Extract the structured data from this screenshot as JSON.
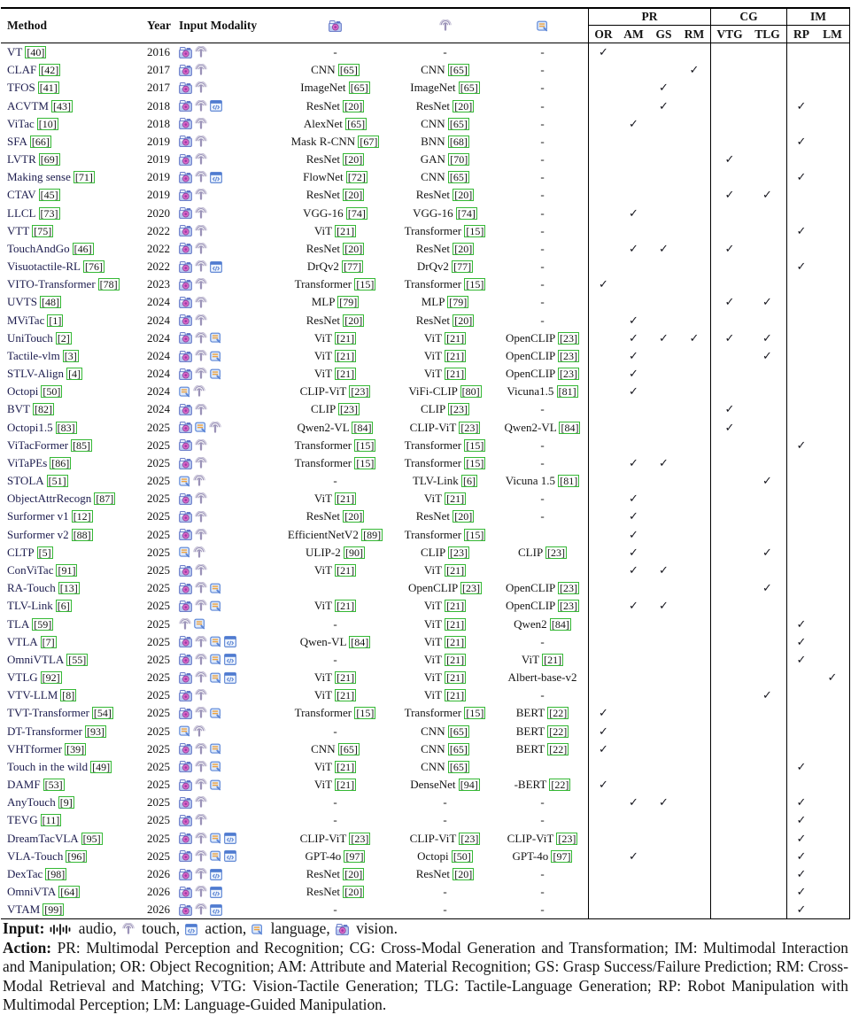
{
  "table": {
    "headers": {
      "method": "Method",
      "year": "Year",
      "input_modality": "Input Modality",
      "encoder_icons": [
        "vision-icon",
        "touch-icon",
        "language-icon"
      ],
      "groups": [
        {
          "label": "PR",
          "cols": [
            "OR",
            "AM",
            "GS",
            "RM"
          ]
        },
        {
          "label": "CG",
          "cols": [
            "VTG",
            "TLG"
          ]
        },
        {
          "label": "IM",
          "cols": [
            "RP",
            "LM"
          ]
        }
      ]
    },
    "check_columns": [
      "OR",
      "AM",
      "GS",
      "RM",
      "VTG",
      "TLG",
      "RP",
      "LM"
    ],
    "rows": [
      {
        "method": "VT",
        "cite": "40",
        "year": "2016",
        "inputs": [
          "vision",
          "touch"
        ],
        "vision_enc": "-",
        "touch_enc": "-",
        "lang_enc": "-",
        "checks": [
          "OR"
        ]
      },
      {
        "method": "CLAF",
        "cite": "42",
        "year": "2017",
        "inputs": [
          "vision",
          "touch"
        ],
        "vision_enc": "CNN [65]",
        "touch_enc": "CNN [65]",
        "lang_enc": "-",
        "checks": [
          "RM"
        ]
      },
      {
        "method": "TFOS",
        "cite": "41",
        "year": "2017",
        "inputs": [
          "vision",
          "touch"
        ],
        "vision_enc": "ImageNet [65]",
        "touch_enc": "ImageNet [65]",
        "lang_enc": "-",
        "checks": [
          "GS"
        ]
      },
      {
        "method": "ACVTM",
        "cite": "43",
        "year": "2018",
        "inputs": [
          "vision",
          "touch",
          "action"
        ],
        "vision_enc": "ResNet [20]",
        "touch_enc": "ResNet [20]",
        "lang_enc": "-",
        "checks": [
          "GS",
          "RP"
        ]
      },
      {
        "method": "ViTac",
        "cite": "10",
        "year": "2018",
        "inputs": [
          "vision",
          "touch"
        ],
        "vision_enc": "AlexNet [65]",
        "touch_enc": "CNN [65]",
        "lang_enc": "-",
        "checks": [
          "AM"
        ]
      },
      {
        "method": "SFA",
        "cite": "66",
        "year": "2019",
        "inputs": [
          "vision",
          "touch"
        ],
        "vision_enc": "Mask R-CNN [67]",
        "touch_enc": "BNN [68]",
        "lang_enc": "-",
        "checks": [
          "RP"
        ]
      },
      {
        "method": "LVTR",
        "cite": "69",
        "year": "2019",
        "inputs": [
          "vision",
          "touch"
        ],
        "vision_enc": "ResNet [20]",
        "touch_enc": "GAN [70]",
        "lang_enc": "-",
        "checks": [
          "VTG"
        ]
      },
      {
        "method": "Making sense",
        "cite": "71",
        "year": "2019",
        "inputs": [
          "vision",
          "touch",
          "action"
        ],
        "vision_enc": "FlowNet [72]",
        "touch_enc": "CNN [65]",
        "lang_enc": "-",
        "checks": [
          "RP"
        ]
      },
      {
        "method": "CTAV",
        "cite": "45",
        "year": "2019",
        "inputs": [
          "vision",
          "touch"
        ],
        "vision_enc": "ResNet [20]",
        "touch_enc": "ResNet [20]",
        "lang_enc": "-",
        "checks": [
          "VTG",
          "TLG"
        ]
      },
      {
        "method": "LLCL",
        "cite": "73",
        "year": "2020",
        "inputs": [
          "vision",
          "touch"
        ],
        "vision_enc": "VGG-16 [74]",
        "touch_enc": "VGG-16 [74]",
        "lang_enc": "-",
        "checks": [
          "AM"
        ]
      },
      {
        "method": "VTT",
        "cite": "75",
        "year": "2022",
        "inputs": [
          "vision",
          "touch"
        ],
        "vision_enc": "ViT [21]",
        "touch_enc": "Transformer [15]",
        "lang_enc": "-",
        "checks": [
          "RP"
        ]
      },
      {
        "method": "TouchAndGo",
        "cite": "46",
        "year": "2022",
        "inputs": [
          "vision",
          "touch"
        ],
        "vision_enc": "ResNet [20]",
        "touch_enc": "ResNet [20]",
        "lang_enc": "-",
        "checks": [
          "AM",
          "GS",
          "VTG"
        ]
      },
      {
        "method": "Visuotactile-RL",
        "cite": "76",
        "year": "2022",
        "inputs": [
          "vision",
          "touch",
          "action"
        ],
        "vision_enc": "DrQv2 [77]",
        "touch_enc": "DrQv2 [77]",
        "lang_enc": "-",
        "checks": [
          "RP"
        ]
      },
      {
        "method": "VITO-Transformer",
        "cite": "78",
        "year": "2023",
        "inputs": [
          "vision",
          "touch"
        ],
        "vision_enc": "Transformer [15]",
        "touch_enc": "Transformer [15]",
        "lang_enc": "-",
        "checks": [
          "OR"
        ]
      },
      {
        "method": "UVTS",
        "cite": "48",
        "year": "2024",
        "inputs": [
          "vision",
          "touch"
        ],
        "vision_enc": "MLP [79]",
        "touch_enc": "MLP [79]",
        "lang_enc": "-",
        "checks": [
          "VTG",
          "TLG"
        ]
      },
      {
        "method": "MViTac",
        "cite": "1",
        "year": "2024",
        "inputs": [
          "vision",
          "touch"
        ],
        "vision_enc": "ResNet [20]",
        "touch_enc": "ResNet [20]",
        "lang_enc": "-",
        "checks": [
          "AM"
        ]
      },
      {
        "method": "UniTouch",
        "cite": "2",
        "year": "2024",
        "inputs": [
          "vision",
          "touch",
          "language"
        ],
        "vision_enc": "ViT [21]",
        "touch_enc": "ViT [21]",
        "lang_enc": "OpenCLIP [23]",
        "checks": [
          "AM",
          "GS",
          "RM",
          "VTG",
          "TLG"
        ]
      },
      {
        "method": "Tactile-vlm",
        "cite": "3",
        "year": "2024",
        "inputs": [
          "vision",
          "touch",
          "language"
        ],
        "vision_enc": "ViT [21]",
        "touch_enc": "ViT [21]",
        "lang_enc": "OpenCLIP [23]",
        "checks": [
          "AM",
          "TLG"
        ]
      },
      {
        "method": "STLV-Align",
        "cite": "4",
        "year": "2024",
        "inputs": [
          "vision",
          "touch",
          "language"
        ],
        "vision_enc": "ViT [21]",
        "touch_enc": "ViT [21]",
        "lang_enc": "OpenCLIP [23]",
        "checks": [
          "AM"
        ]
      },
      {
        "method": "Octopi",
        "cite": "50",
        "year": "2024",
        "inputs": [
          "language",
          "touch"
        ],
        "vision_enc": "CLIP-ViT [23]",
        "touch_enc": "ViFi-CLIP [80]",
        "lang_enc": "Vicuna1.5 [81]",
        "checks": [
          "AM"
        ]
      },
      {
        "method": "BVT",
        "cite": "82",
        "year": "2024",
        "inputs": [
          "vision",
          "touch"
        ],
        "vision_enc": "CLIP [23]",
        "touch_enc": "CLIP [23]",
        "lang_enc": "-",
        "checks": [
          "VTG"
        ]
      },
      {
        "method": "Octopi1.5",
        "cite": "83",
        "year": "2025",
        "inputs": [
          "vision",
          "language",
          "touch"
        ],
        "vision_enc": "Qwen2-VL [84]",
        "touch_enc": "CLIP-ViT [23]",
        "lang_enc": "Qwen2-VL [84]",
        "checks": [
          "VTG"
        ]
      },
      {
        "method": "ViTacFormer",
        "cite": "85",
        "year": "2025",
        "inputs": [
          "vision",
          "touch"
        ],
        "vision_enc": "Transformer [15]",
        "touch_enc": "Transformer [15]",
        "lang_enc": "-",
        "checks": [
          "RP"
        ]
      },
      {
        "method": "ViTaPEs",
        "cite": "86",
        "year": "2025",
        "inputs": [
          "vision",
          "touch"
        ],
        "vision_enc": "Transformer [15]",
        "touch_enc": "Transformer [15]",
        "lang_enc": "-",
        "checks": [
          "AM",
          "GS"
        ]
      },
      {
        "method": "STOLA",
        "cite": "51",
        "year": "2025",
        "inputs": [
          "language",
          "touch"
        ],
        "vision_enc": "-",
        "touch_enc": "TLV-Link [6]",
        "lang_enc": "Vicuna 1.5 [81]",
        "checks": [
          "TLG"
        ]
      },
      {
        "method": "ObjectAttrRecogn",
        "cite": "87",
        "year": "2025",
        "inputs": [
          "vision",
          "touch"
        ],
        "vision_enc": "ViT [21]",
        "touch_enc": "ViT [21]",
        "lang_enc": "-",
        "checks": [
          "AM"
        ]
      },
      {
        "method": "Surformer v1",
        "cite": "12",
        "year": "2025",
        "inputs": [
          "vision",
          "touch"
        ],
        "vision_enc": "ResNet [20]",
        "touch_enc": "ResNet [20]",
        "lang_enc": "-",
        "checks": [
          "AM"
        ]
      },
      {
        "method": "Surformer v2",
        "cite": "88",
        "year": "2025",
        "inputs": [
          "vision",
          "touch"
        ],
        "vision_enc": "EfficientNetV2 [89]",
        "touch_enc": "Transformer [15]",
        "lang_enc": "",
        "checks": [
          "AM"
        ]
      },
      {
        "method": "CLTP",
        "cite": "5",
        "year": "2025",
        "inputs": [
          "language",
          "touch"
        ],
        "vision_enc": "ULIP-2 [90]",
        "touch_enc": "CLIP [23]",
        "lang_enc": "CLIP [23]",
        "checks": [
          "AM",
          "TLG"
        ]
      },
      {
        "method": "ConViTac",
        "cite": "91",
        "year": "2025",
        "inputs": [
          "vision",
          "touch"
        ],
        "vision_enc": "ViT [21]",
        "touch_enc": "ViT [21]",
        "lang_enc": "",
        "checks": [
          "AM",
          "GS"
        ]
      },
      {
        "method": "RA-Touch",
        "cite": "13",
        "year": "2025",
        "inputs": [
          "vision",
          "touch",
          "language"
        ],
        "vision_enc": "",
        "touch_enc": "OpenCLIP [23]",
        "lang_enc": "OpenCLIP [23]",
        "checks": [
          "TLG"
        ]
      },
      {
        "method": "TLV-Link",
        "cite": "6",
        "year": "2025",
        "inputs": [
          "vision",
          "touch",
          "language"
        ],
        "vision_enc": "ViT [21]",
        "touch_enc": "ViT [21]",
        "lang_enc": "OpenCLIP [23]",
        "checks": [
          "AM",
          "GS"
        ]
      },
      {
        "method": "TLA",
        "cite": "59",
        "year": "2025",
        "inputs": [
          "touch",
          "language"
        ],
        "vision_enc": "-",
        "touch_enc": "ViT [21]",
        "lang_enc": "Qwen2 [84]",
        "checks": [
          "RP"
        ]
      },
      {
        "method": "VTLA",
        "cite": "7",
        "year": "2025",
        "inputs": [
          "vision",
          "touch",
          "language",
          "action"
        ],
        "vision_enc": "Qwen-VL [84]",
        "touch_enc": "ViT [21]",
        "lang_enc": "-",
        "checks": [
          "RP"
        ]
      },
      {
        "method": "OmniVTLA",
        "cite": "55",
        "year": "2025",
        "inputs": [
          "vision",
          "touch",
          "language",
          "action"
        ],
        "vision_enc": "-",
        "touch_enc": "ViT [21]",
        "lang_enc": "ViT [21]",
        "checks": [
          "RP"
        ]
      },
      {
        "method": "VTLG",
        "cite": "92",
        "year": "2025",
        "inputs": [
          "vision",
          "touch",
          "language",
          "action"
        ],
        "vision_enc": "ViT [21]",
        "touch_enc": "ViT [21]",
        "lang_enc": "Albert-base-v2",
        "checks": [
          "LM"
        ]
      },
      {
        "method": "VTV-LLM",
        "cite": "8",
        "year": "2025",
        "inputs": [
          "vision",
          "touch"
        ],
        "vision_enc": "ViT [21]",
        "touch_enc": "ViT [21]",
        "lang_enc": "-",
        "checks": [
          "TLG"
        ]
      },
      {
        "method": "TVT-Transformer",
        "cite": "54",
        "year": "2025",
        "inputs": [
          "vision",
          "touch",
          "language"
        ],
        "vision_enc": "Transformer [15]",
        "touch_enc": "Transformer [15]",
        "lang_enc": "BERT [22]",
        "checks": [
          "OR"
        ]
      },
      {
        "method": "DT-Transformer",
        "cite": "93",
        "year": "2025",
        "inputs": [
          "language",
          "touch"
        ],
        "vision_enc": "-",
        "touch_enc": "CNN [65]",
        "lang_enc": "BERT [22]",
        "checks": [
          "OR"
        ]
      },
      {
        "method": "VHTformer",
        "cite": "39",
        "year": "2025",
        "inputs": [
          "vision",
          "touch",
          "language"
        ],
        "vision_enc": "CNN [65]",
        "touch_enc": "CNN [65]",
        "lang_enc": "BERT [22]",
        "checks": [
          "OR"
        ]
      },
      {
        "method": "Touch in the wild",
        "cite": "49",
        "year": "2025",
        "inputs": [
          "vision",
          "touch",
          "language"
        ],
        "vision_enc": "ViT [21]",
        "touch_enc": "CNN [65]",
        "lang_enc": "",
        "checks": [
          "RP"
        ]
      },
      {
        "method": "DAMF",
        "cite": "53",
        "year": "2025",
        "inputs": [
          "vision",
          "touch",
          "language"
        ],
        "vision_enc": "ViT [21]",
        "touch_enc": "DenseNet [94]",
        "lang_enc": "-BERT [22]",
        "checks": [
          "OR"
        ]
      },
      {
        "method": "AnyTouch",
        "cite": "9",
        "year": "2025",
        "inputs": [
          "vision",
          "touch"
        ],
        "vision_enc": "-",
        "touch_enc": "-",
        "lang_enc": "-",
        "checks": [
          "AM",
          "GS",
          "RP"
        ]
      },
      {
        "method": "TEVG",
        "cite": "11",
        "year": "2025",
        "inputs": [
          "vision",
          "touch"
        ],
        "vision_enc": "-",
        "touch_enc": "-",
        "lang_enc": "-",
        "checks": [
          "RP"
        ]
      },
      {
        "method": "DreamTacVLA",
        "cite": "95",
        "year": "2025",
        "inputs": [
          "vision",
          "touch",
          "language",
          "action"
        ],
        "vision_enc": "CLIP-ViT [23]",
        "touch_enc": "CLIP-ViT [23]",
        "lang_enc": "CLIP-ViT [23]",
        "checks": [
          "RP"
        ]
      },
      {
        "method": "VLA-Touch",
        "cite": "96",
        "year": "2025",
        "inputs": [
          "vision",
          "touch",
          "language",
          "action"
        ],
        "vision_enc": "GPT-4o [97]",
        "touch_enc": "Octopi [50]",
        "lang_enc": "GPT-4o [97]",
        "checks": [
          "AM",
          "RP"
        ]
      },
      {
        "method": "DexTac",
        "cite": "98",
        "year": "2026",
        "inputs": [
          "vision",
          "touch",
          "action"
        ],
        "vision_enc": "ResNet [20]",
        "touch_enc": "ResNet [20]",
        "lang_enc": "-",
        "checks": [
          "RP"
        ]
      },
      {
        "method": "OmniVTA",
        "cite": "64",
        "year": "2026",
        "inputs": [
          "vision",
          "touch",
          "action"
        ],
        "vision_enc": "ResNet [20]",
        "touch_enc": "-",
        "lang_enc": "-",
        "checks": [
          "RP"
        ]
      },
      {
        "method": "VTAM",
        "cite": "99",
        "year": "2026",
        "inputs": [
          "vision",
          "touch",
          "action"
        ],
        "vision_enc": "-",
        "touch_enc": "-",
        "lang_enc": "-",
        "checks": [
          "RP"
        ]
      }
    ]
  },
  "legend": {
    "input_label": "Input:",
    "input_items": [
      {
        "icon": "audio",
        "label": "audio,"
      },
      {
        "icon": "touch",
        "label": "touch,"
      },
      {
        "icon": "action",
        "label": "action,"
      },
      {
        "icon": "language",
        "label": "language,"
      },
      {
        "icon": "vision",
        "label": "vision."
      }
    ],
    "action_label": "Action:",
    "action_text": "PR: Multimodal Perception and Recognition; CG: Cross-Modal Generation and Transformation; IM: Multimodal Interaction and Manipulation; OR: Object Recognition; AM: Attribute and Material Recognition; GS: Grasp Success/Failure Prediction; RM: Cross-Modal Retrieval and Matching; VTG: Vision-Tactile Generation; TLG: Tactile-Language Generation; RP: Robot Manipulation with Multimodal Perception; LM: Language-Guided Manipulation.",
    "checkmark": "✓",
    "green_box_color": "#35b835"
  }
}
